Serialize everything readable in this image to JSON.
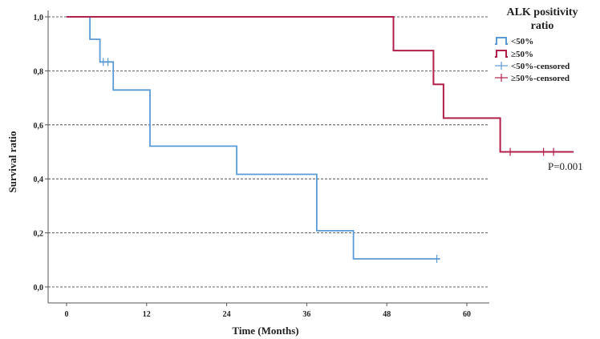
{
  "chart_data": {
    "type": "line",
    "step": true,
    "xlabel": "Time (Months)",
    "ylabel": "Survival ratio",
    "xlim": [
      -4,
      64
    ],
    "ylim": [
      0,
      1.0
    ],
    "xticks": [
      0,
      12,
      24,
      36,
      48,
      60
    ],
    "yticks": [
      {
        "value": 0.0,
        "label": "0,0"
      },
      {
        "value": 0.2,
        "label": "0,2"
      },
      {
        "value": 0.4,
        "label": "0,4"
      },
      {
        "value": 0.6,
        "label": "0,6"
      },
      {
        "value": 0.8,
        "label": "0,8"
      },
      {
        "value": 1.0,
        "label": "1,0"
      }
    ],
    "grid": "horizontal dashed",
    "legend": {
      "title": "ALK positivity ratio",
      "placement": "top-right",
      "entries": [
        {
          "label": "<50%",
          "series": "lt50",
          "kind": "line"
        },
        {
          "label": "≥50%",
          "series": "ge50",
          "kind": "line"
        },
        {
          "label": "<50%-censored",
          "series": "lt50",
          "kind": "censor"
        },
        {
          "label": "≥50%-censored",
          "series": "ge50",
          "kind": "censor"
        }
      ]
    },
    "series": [
      {
        "id": "lt50",
        "name": "<50%",
        "color": "#5b9bd5",
        "points": [
          [
            0,
            1.0
          ],
          [
            3.5,
            1.0
          ],
          [
            3.5,
            0.917
          ],
          [
            5,
            0.917
          ],
          [
            5,
            0.833
          ],
          [
            7,
            0.833
          ],
          [
            7,
            0.729
          ],
          [
            12.5,
            0.729
          ],
          [
            12.5,
            0.625
          ],
          [
            12.5,
            0.521
          ],
          [
            25.5,
            0.521
          ],
          [
            25.5,
            0.417
          ],
          [
            37.5,
            0.417
          ],
          [
            37.5,
            0.313
          ],
          [
            37.5,
            0.208
          ],
          [
            43,
            0.208
          ],
          [
            43,
            0.104
          ],
          [
            56,
            0.104
          ]
        ],
        "censored": [
          [
            5.5,
            0.833
          ],
          [
            6.2,
            0.833
          ],
          [
            55.5,
            0.104
          ]
        ]
      },
      {
        "id": "ge50",
        "name": "≥50%",
        "color": "#b0204a",
        "points": [
          [
            0,
            1.0
          ],
          [
            49,
            1.0
          ],
          [
            49,
            0.875
          ],
          [
            55,
            0.875
          ],
          [
            55,
            0.75
          ],
          [
            56.5,
            0.75
          ],
          [
            56.5,
            0.625
          ],
          [
            65,
            0.625
          ],
          [
            65,
            0.5
          ],
          [
            76,
            0.5
          ]
        ],
        "censored": [
          [
            66.5,
            0.5
          ],
          [
            71.5,
            0.5
          ],
          [
            73,
            0.5
          ]
        ]
      }
    ],
    "annotations": [
      {
        "text": "P=0.001"
      }
    ]
  }
}
